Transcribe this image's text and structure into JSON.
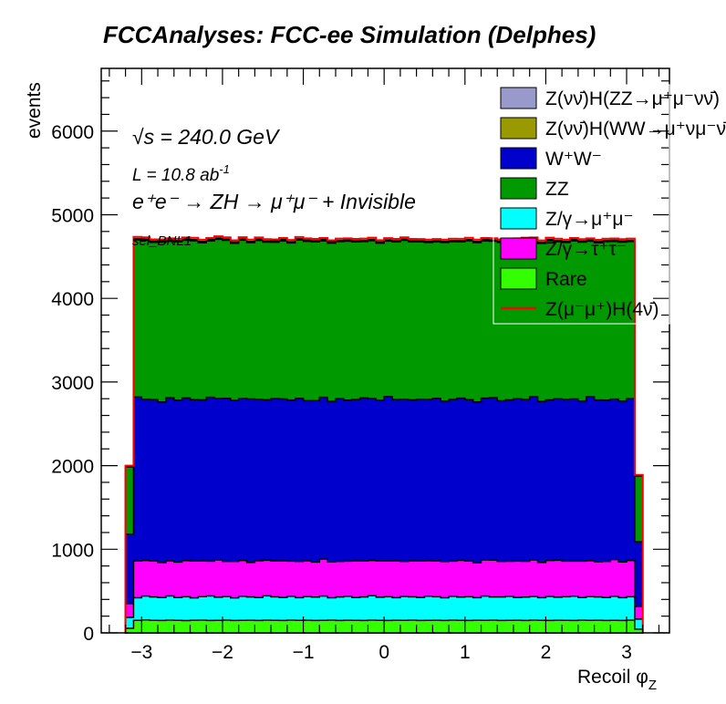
{
  "chart_data": {
    "type": "bar",
    "stacked": true,
    "title": "FCCAnalyses: FCC-ee Simulation (Delphes)",
    "xlabel": "Recoil φ",
    "xlabel_sub": "Z",
    "ylabel": "events",
    "xlim": [
      -3.5,
      3.53
    ],
    "ylim": [
      0,
      6750
    ],
    "bin_low": -3.2,
    "bin_width": 0.1,
    "x_ticks": [
      {
        "v": -3,
        "label": "−3"
      },
      {
        "v": -2,
        "label": "−2"
      },
      {
        "v": -1,
        "label": "−1"
      },
      {
        "v": 0,
        "label": "0"
      },
      {
        "v": 1,
        "label": "1"
      },
      {
        "v": 2,
        "label": "2"
      },
      {
        "v": 3,
        "label": "3"
      }
    ],
    "y_ticks": [
      {
        "v": 0,
        "label": "0"
      },
      {
        "v": 1000,
        "label": "1000"
      },
      {
        "v": 2000,
        "label": "2000"
      },
      {
        "v": 3000,
        "label": "3000"
      },
      {
        "v": 4000,
        "label": "4000"
      },
      {
        "v": 5000,
        "label": "5000"
      },
      {
        "v": 6000,
        "label": "6000"
      }
    ],
    "annotations": {
      "sqrt_s": "√s = 240.0 GeV",
      "lumi": "L = 10.8 ab",
      "lumi_sup": "-1",
      "process": "e⁺e⁻ → ZH → μ⁺μ⁻ + Invisible",
      "selection": "sel_BNL1"
    },
    "legend_position": "top-right",
    "series": [
      {
        "name": "Rare",
        "color": "#33ff00",
        "values": [
          55,
          150,
          155,
          150,
          148,
          152,
          150,
          147,
          151,
          153,
          149,
          150,
          152,
          148,
          150,
          151,
          149,
          153,
          150,
          148,
          152,
          150,
          151,
          149,
          150,
          152,
          148,
          151,
          150,
          149,
          153,
          150,
          148,
          151,
          150,
          152,
          149,
          150,
          151,
          148,
          152,
          150,
          149,
          151,
          150,
          153,
          148,
          150,
          151,
          149,
          152,
          150,
          148,
          151,
          150,
          149,
          152,
          150,
          151,
          148,
          150,
          149,
          152,
          45
        ]
      },
      {
        "name": "Z/γ→μ⁺μ⁻",
        "color": "#00ffff",
        "values": [
          130,
          270,
          285,
          280,
          275,
          290,
          272,
          285,
          268,
          280,
          292,
          277,
          283,
          270,
          288,
          279,
          274,
          290,
          281,
          276,
          286,
          271,
          284,
          279,
          290,
          268,
          282,
          287,
          273,
          280,
          291,
          276,
          284,
          270,
          286,
          279,
          275,
          289,
          281,
          272,
          285,
          278,
          283,
          270,
          290,
          276,
          282,
          287,
          273,
          279,
          284,
          271,
          288,
          276,
          282,
          290,
          270,
          284,
          279,
          275,
          288,
          272,
          280,
          120
        ]
      },
      {
        "name": "Z/γ→τ⁺τ⁻",
        "color": "#ff00ff",
        "values": [
          165,
          440,
          425,
          430,
          418,
          420,
          425,
          432,
          440,
          428,
          416,
          445,
          420,
          436,
          428,
          412,
          440,
          425,
          430,
          438,
          420,
          433,
          427,
          418,
          442,
          430,
          425,
          420,
          438,
          431,
          422,
          435,
          428,
          440,
          419,
          430,
          436,
          424,
          428,
          433,
          421,
          439,
          427,
          416,
          432,
          440,
          425,
          419,
          434,
          428,
          437,
          422,
          430,
          441,
          426,
          418,
          436,
          429,
          420,
          431,
          438,
          427,
          433,
          150
        ]
      },
      {
        "name": "W⁺W⁻",
        "color": "#0000cc",
        "values": [
          830,
          1960,
          1930,
          1930,
          1920,
          1950,
          1935,
          1945,
          1930,
          1925,
          1960,
          1930,
          1950,
          1925,
          1935,
          1955,
          1930,
          1920,
          1940,
          1935,
          1925,
          1950,
          1915,
          1930,
          1935,
          1920,
          1945,
          1925,
          1930,
          1950,
          1935,
          1920,
          1965,
          1930,
          1940,
          1925,
          1935,
          1930,
          1945,
          1920,
          1935,
          1940,
          1930,
          1925,
          1935,
          1945,
          1920,
          1930,
          1940,
          1935,
          1950,
          1925,
          1920,
          1930,
          1935,
          1940,
          1915,
          1960,
          1935,
          1930,
          1920,
          1925,
          1935,
          775
        ]
      },
      {
        "name": "ZZ",
        "color": "#009900",
        "values": [
          805,
          1880,
          1900,
          1880,
          1910,
          1870,
          1895,
          1885,
          1900,
          1880,
          1870,
          1905,
          1890,
          1880,
          1895,
          1870,
          1900,
          1885,
          1870,
          1890,
          1880,
          1895,
          1905,
          1900,
          1870,
          1890,
          1880,
          1900,
          1885,
          1870,
          1890,
          1880,
          1860,
          1885,
          1900,
          1890,
          1880,
          1875,
          1870,
          1895,
          1885,
          1870,
          1900,
          1905,
          1880,
          1870,
          1895,
          1880,
          1885,
          1900,
          1870,
          1890,
          1905,
          1880,
          1875,
          1890,
          1900,
          1860,
          1880,
          1895,
          1885,
          1900,
          1880,
          785
        ]
      },
      {
        "name": "Z(νν̄)H(WW→μ⁺νμ⁻ν̄)",
        "color": "#999900",
        "values": [
          4,
          10,
          10,
          10,
          10,
          10,
          10,
          10,
          10,
          10,
          10,
          10,
          10,
          10,
          10,
          10,
          10,
          10,
          10,
          10,
          10,
          10,
          10,
          10,
          10,
          10,
          10,
          10,
          10,
          10,
          10,
          10,
          10,
          10,
          10,
          10,
          10,
          10,
          10,
          10,
          10,
          10,
          10,
          10,
          10,
          10,
          10,
          10,
          10,
          10,
          10,
          10,
          10,
          10,
          10,
          10,
          10,
          10,
          10,
          10,
          10,
          10,
          10,
          4
        ]
      },
      {
        "name": "Z(νν̄)H(ZZ→μ⁺μ⁻νν̄)",
        "color": "#9999cc",
        "values": [
          2,
          5,
          5,
          5,
          5,
          5,
          5,
          5,
          5,
          5,
          5,
          5,
          5,
          5,
          5,
          5,
          5,
          5,
          5,
          5,
          5,
          5,
          5,
          5,
          5,
          5,
          5,
          5,
          5,
          5,
          5,
          5,
          5,
          5,
          5,
          5,
          5,
          5,
          5,
          5,
          5,
          5,
          5,
          5,
          5,
          5,
          5,
          5,
          5,
          5,
          5,
          5,
          5,
          5,
          5,
          5,
          5,
          5,
          5,
          5,
          5,
          5,
          5,
          2
        ]
      }
    ],
    "signal": {
      "name": "Z(μ⁻μ⁺)H(4ν̄)",
      "color": "#ff0000",
      "values": [
        8,
        20,
        20,
        20,
        20,
        20,
        20,
        20,
        20,
        20,
        20,
        20,
        20,
        20,
        20,
        20,
        20,
        20,
        20,
        20,
        20,
        20,
        20,
        20,
        20,
        20,
        20,
        20,
        20,
        20,
        20,
        20,
        20,
        20,
        20,
        20,
        20,
        20,
        20,
        20,
        20,
        20,
        20,
        20,
        20,
        20,
        20,
        20,
        20,
        20,
        20,
        20,
        20,
        20,
        20,
        20,
        20,
        20,
        20,
        20,
        20,
        20,
        20,
        8
      ]
    },
    "legend": [
      {
        "label": "Z(νν̄)H(ZZ→μ⁺μ⁻νν̄)",
        "color": "#9999cc",
        "kind": "box"
      },
      {
        "label": "Z(νν̄)H(WW→μ⁺νμ⁻ν̄)",
        "color": "#999900",
        "kind": "box"
      },
      {
        "label": "W⁺W⁻",
        "color": "#0000cc",
        "kind": "box"
      },
      {
        "label": "ZZ",
        "color": "#009900",
        "kind": "box"
      },
      {
        "label": "Z/γ→μ⁺μ⁻",
        "color": "#00ffff",
        "kind": "box"
      },
      {
        "label": "Z/γ→τ⁺τ⁻",
        "color": "#ff00ff",
        "kind": "box"
      },
      {
        "label": "Rare",
        "color": "#33ff00",
        "kind": "box"
      },
      {
        "label": "Z(μ⁻μ⁺)H(4ν̄)",
        "color": "#ff0000",
        "kind": "line"
      }
    ]
  }
}
